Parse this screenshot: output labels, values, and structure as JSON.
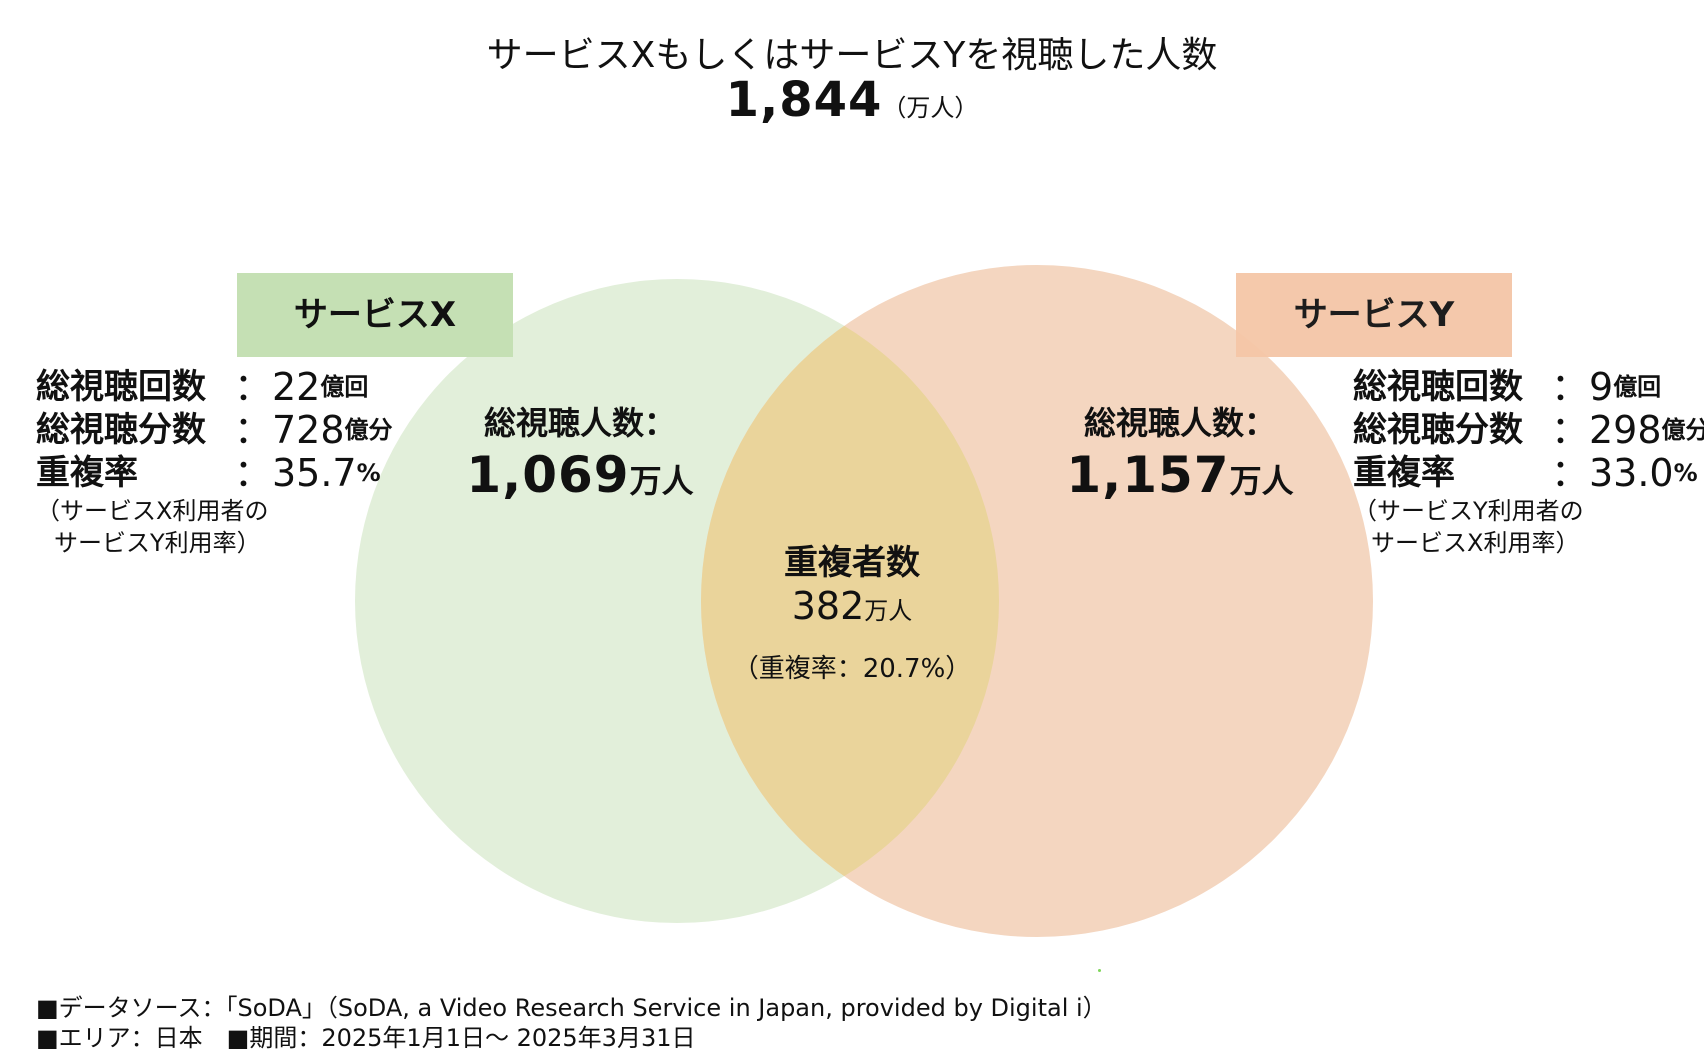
{
  "headline": {
    "title": "サービスXもしくはサービスYを視聴した人数",
    "total_value": "1,844",
    "total_unit": "（万人）"
  },
  "service_x": {
    "label": "サービスX",
    "color": "#c5e0b4",
    "circle_color": "#e2efda",
    "viewers_caption": "総視聴人数：",
    "viewers_value": "1,069",
    "viewers_unit": "万人",
    "stats": [
      {
        "label": "総視聴回数",
        "value": "：22",
        "unit": "億回"
      },
      {
        "label": "総視聴分数",
        "value": "：728",
        "unit": "億分"
      },
      {
        "label": "重複率",
        "value": "：35.7",
        "unit": "%"
      }
    ],
    "note_line1": "（サービスX利用者の",
    "note_line2": "サービスY利用率）"
  },
  "service_y": {
    "label": "サービスY",
    "color": "#f4c6a7",
    "circle_color": "#f4d6c0",
    "viewers_caption": "総視聴人数：",
    "viewers_value": "1,157",
    "viewers_unit": "万人",
    "stats": [
      {
        "label": "総視聴回数",
        "value": "：9",
        "unit": "億回"
      },
      {
        "label": "総視聴分数",
        "value": "：298",
        "unit": "億分"
      },
      {
        "label": "重複率",
        "value": "：33.0",
        "unit": "%"
      }
    ],
    "note_line1": "（サービスY利用者の",
    "note_line2": "サービスX利用率）"
  },
  "overlap": {
    "title": "重複者数",
    "value": "382",
    "unit": "万人",
    "rate": "（重複率：20.7%）",
    "color": "#ead49b"
  },
  "footer": {
    "source": "■データソース：「SoDA」（SoDA, a Video Research Service in Japan, provided by Digital i）",
    "area_period": "■エリア：日本　■期間：2025年1月1日～ 2025年3月31日"
  }
}
